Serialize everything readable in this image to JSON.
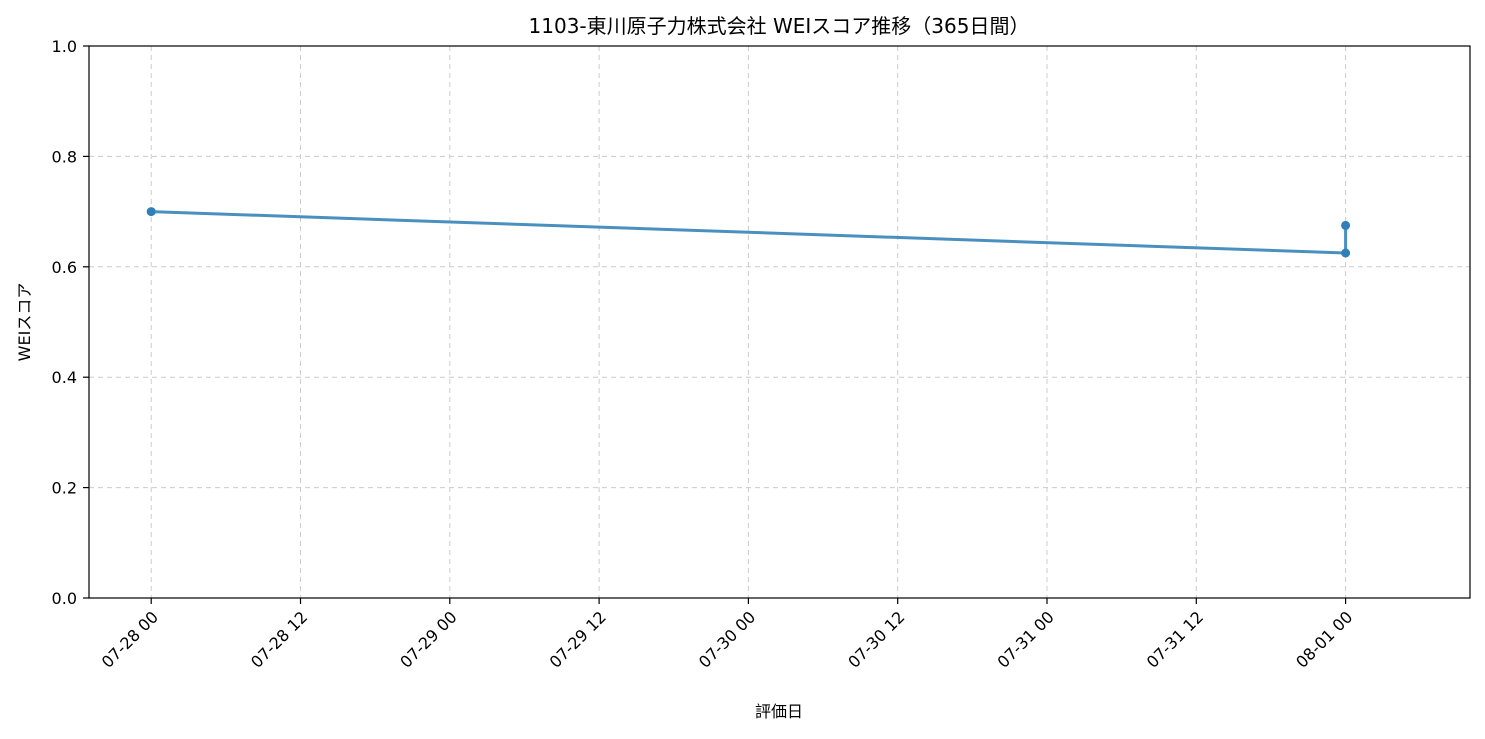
{
  "chart_data": {
    "type": "line",
    "title": "1103-東川原子力株式会社 WEIスコア推移（365日間）",
    "xlabel": "評価日",
    "ylabel": "WEIスコア",
    "ylim": [
      0,
      1.0
    ],
    "yticks": [
      "0.0",
      "0.2",
      "0.4",
      "0.6",
      "0.8",
      "1.0"
    ],
    "xlim": [
      "2025-07-27 19:00",
      "2025-08-01 10:00"
    ],
    "xticks": [
      {
        "t": "2025-07-28 00:00",
        "label": "07-28 00"
      },
      {
        "t": "2025-07-28 12:00",
        "label": "07-28 12"
      },
      {
        "t": "2025-07-29 00:00",
        "label": "07-29 00"
      },
      {
        "t": "2025-07-29 12:00",
        "label": "07-29 12"
      },
      {
        "t": "2025-07-30 00:00",
        "label": "07-30 00"
      },
      {
        "t": "2025-07-30 12:00",
        "label": "07-30 12"
      },
      {
        "t": "2025-07-31 00:00",
        "label": "07-31 00"
      },
      {
        "t": "2025-07-31 12:00",
        "label": "07-31 12"
      },
      {
        "t": "2025-08-01 00:00",
        "label": "08-01 00"
      }
    ],
    "grid": true,
    "series": [
      {
        "color": "#4a90bf",
        "marker_color": "#2f7fb8",
        "points": [
          {
            "x": "2025-07-28 00:00",
            "y": 0.7
          },
          {
            "x": "2025-08-01 00:00",
            "y": 0.625
          },
          {
            "x": "2025-08-01 00:00",
            "y": 0.675
          }
        ]
      }
    ]
  }
}
